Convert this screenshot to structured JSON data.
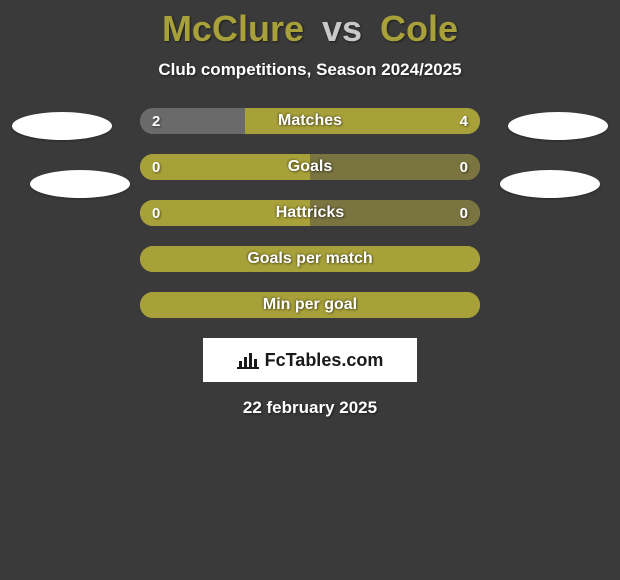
{
  "title": {
    "player1": "McClure",
    "vs": "vs",
    "player2": "Cole",
    "player1_color": "#a8a13a",
    "vs_color": "#c8c8c8",
    "player2_color": "#a8a13a"
  },
  "subtitle": "Club competitions, Season 2024/2025",
  "colors": {
    "bar_base": "#a8a13a",
    "bar_accent": "#6a6a6a",
    "bar_accent2": "#7a7440",
    "ellipse": "#ffffff",
    "background": "#3a3a3a"
  },
  "stats": [
    {
      "label": "Matches",
      "left_value": "2",
      "right_value": "4",
      "left_pct": 31,
      "right_pct": 69,
      "left_color": "#6a6a6a",
      "right_color": "#a8a13a",
      "show_values": true
    },
    {
      "label": "Goals",
      "left_value": "0",
      "right_value": "0",
      "left_pct": 50,
      "right_pct": 50,
      "left_color": "#a8a13a",
      "right_color": "#7a7440",
      "show_values": true
    },
    {
      "label": "Hattricks",
      "left_value": "0",
      "right_value": "0",
      "left_pct": 50,
      "right_pct": 50,
      "left_color": "#a8a13a",
      "right_color": "#7a7440",
      "show_values": true
    },
    {
      "label": "Goals per match",
      "left_value": "",
      "right_value": "",
      "left_pct": 100,
      "right_pct": 0,
      "left_color": "#a8a13a",
      "right_color": "#a8a13a",
      "show_values": false
    },
    {
      "label": "Min per goal",
      "left_value": "",
      "right_value": "",
      "left_pct": 100,
      "right_pct": 0,
      "left_color": "#a8a13a",
      "right_color": "#a8a13a",
      "show_values": false
    }
  ],
  "brand": {
    "icon": "bar-chart-icon",
    "text": "FcTables.com"
  },
  "date": "22 february 2025"
}
